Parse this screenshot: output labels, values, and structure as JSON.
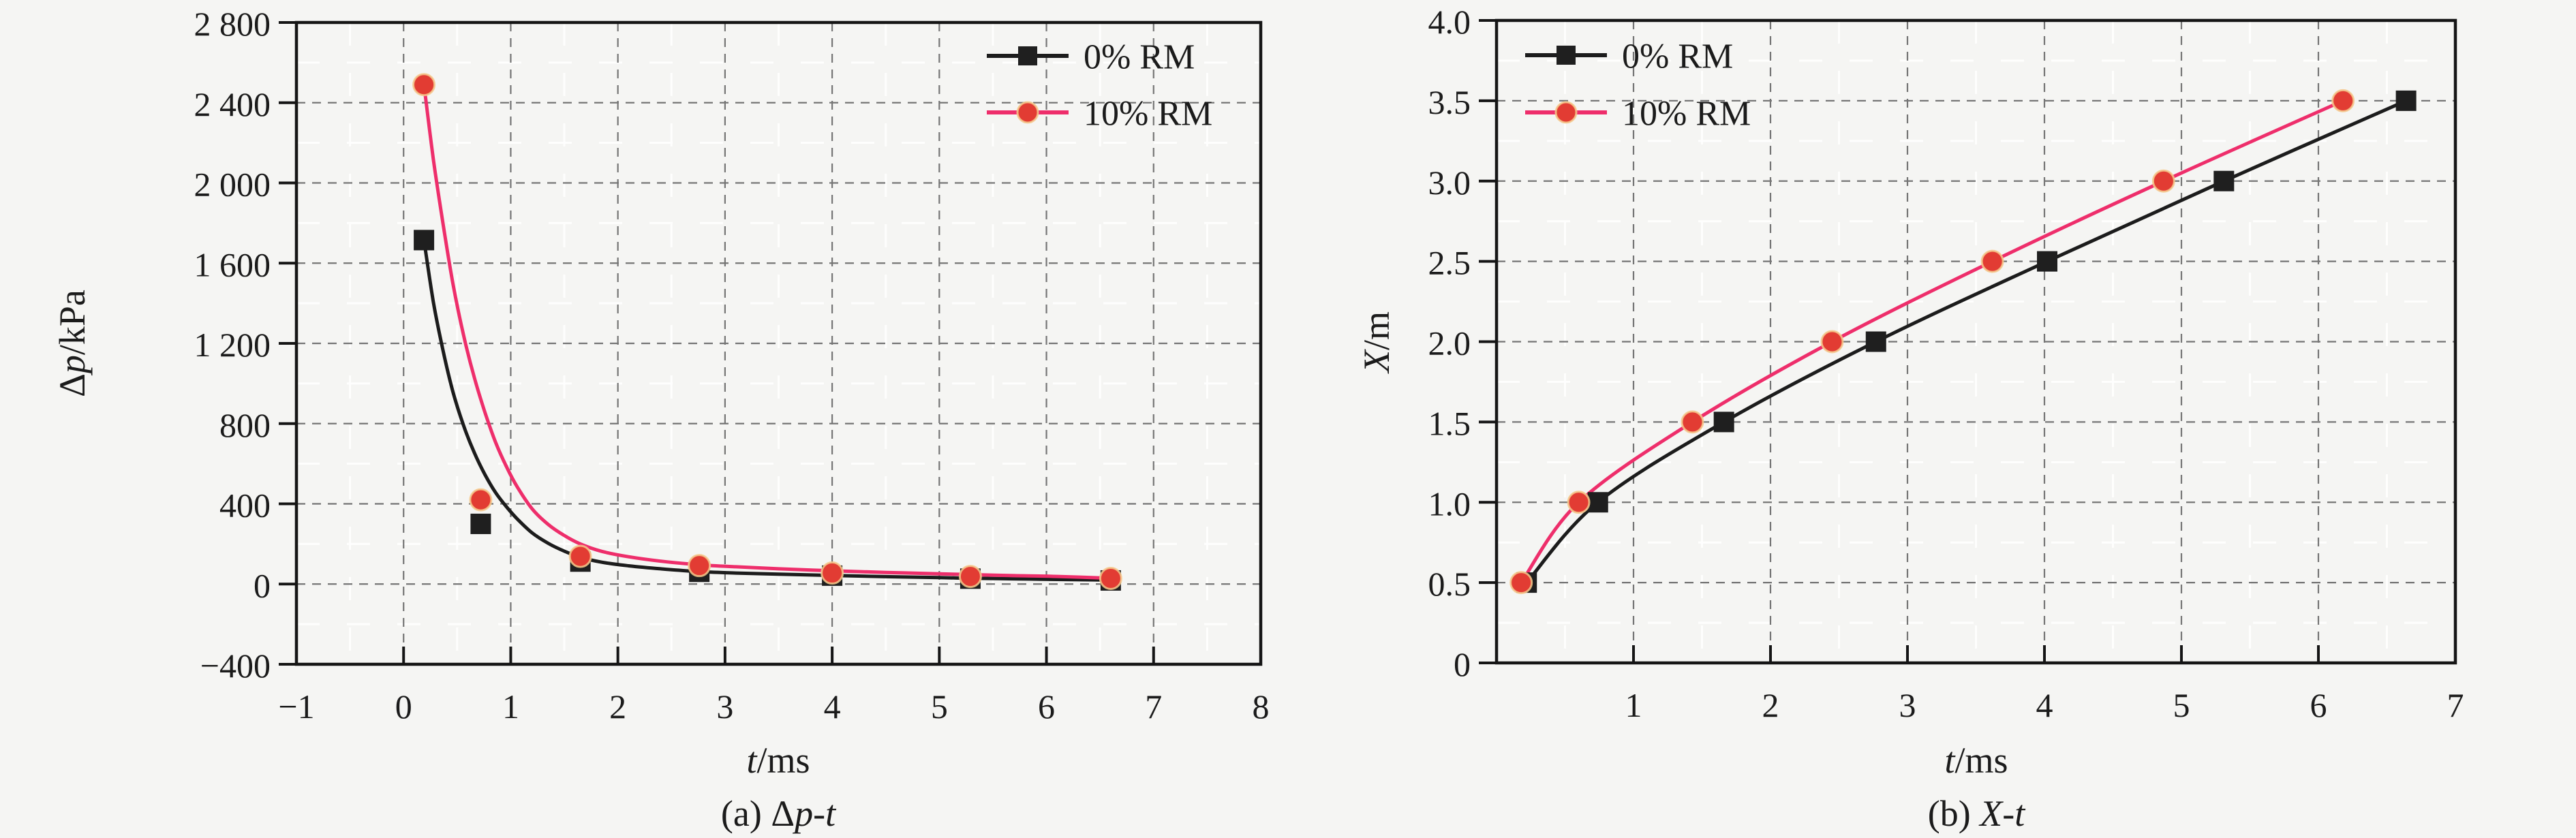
{
  "figure": {
    "background": "#f5f5f3",
    "text_color": "#1b1b1b",
    "grid_major_color": "#757575",
    "grid_minor_color": "#ffffff",
    "frame_color": "#151515"
  },
  "chart_data": [
    {
      "type": "line",
      "id": "delta-p-vs-t",
      "caption": {
        "prefix": "(a) ",
        "upright": "Δ",
        "italic": "p-t"
      },
      "x_title": {
        "var": "t",
        "unit": "/ms"
      },
      "y_title": {
        "prefix": "Δ",
        "var": "p",
        "unit": "/kPa"
      },
      "xlabel": "t/ms",
      "ylabel": "Δp/kPa",
      "xlim": [
        -1,
        8
      ],
      "ylim": [
        -400,
        2800
      ],
      "legend_position": "top-right-inside",
      "x_axis": {
        "ticks": [
          {
            "v": -1,
            "label": "−1"
          },
          {
            "v": 0,
            "label": "0"
          },
          {
            "v": 1,
            "label": "1"
          },
          {
            "v": 2,
            "label": "2"
          },
          {
            "v": 3,
            "label": "3"
          },
          {
            "v": 4,
            "label": "4"
          },
          {
            "v": 5,
            "label": "5"
          },
          {
            "v": 6,
            "label": "6"
          },
          {
            "v": 7,
            "label": "7"
          },
          {
            "v": 8,
            "label": "8"
          }
        ],
        "grid_major": [
          0,
          1,
          2,
          3,
          4,
          5,
          6,
          7
        ],
        "grid_minor": [
          -0.5,
          0.5,
          1.5,
          2.5,
          3.5,
          4.5,
          5.5,
          6.5,
          7.5
        ]
      },
      "y_axis": {
        "ticks": [
          {
            "v": 2800,
            "label": "2 800"
          },
          {
            "v": 2400,
            "label": "2 400"
          },
          {
            "v": 2000,
            "label": "2 000"
          },
          {
            "v": 1600,
            "label": "1 600"
          },
          {
            "v": 1200,
            "label": "1 200"
          },
          {
            "v": 800,
            "label": "800"
          },
          {
            "v": 400,
            "label": "400"
          },
          {
            "v": 0,
            "label": "0"
          },
          {
            "v": -400,
            "label": "−400"
          }
        ],
        "grid_major": [
          2400,
          2000,
          1600,
          1200,
          800,
          400,
          0
        ],
        "grid_minor": [
          2600,
          2200,
          1800,
          1400,
          1000,
          600,
          200,
          -200
        ]
      },
      "series": [
        {
          "name": "0% RM",
          "marker": "square",
          "line_color": "#1c1c1c",
          "marker_color": "#1f1f1f",
          "points": [
            [
              0.19,
              1715
            ],
            [
              0.72,
              300
            ],
            [
              1.65,
              112
            ],
            [
              2.76,
              61
            ],
            [
              4.0,
              42
            ],
            [
              5.29,
              27
            ],
            [
              6.6,
              18
            ]
          ],
          "curve": [
            [
              0.19,
              1715
            ],
            [
              0.28,
              1400
            ],
            [
              0.37,
              1160
            ],
            [
              0.46,
              960
            ],
            [
              0.56,
              790
            ],
            [
              0.66,
              655
            ],
            [
              0.76,
              545
            ],
            [
              0.86,
              455
            ],
            [
              0.96,
              385
            ],
            [
              1.06,
              325
            ],
            [
              1.2,
              255
            ],
            [
              1.35,
              203
            ],
            [
              1.5,
              164
            ],
            [
              1.65,
              134
            ],
            [
              1.85,
              109
            ],
            [
              2.1,
              91
            ],
            [
              2.4,
              76
            ],
            [
              2.76,
              62
            ],
            [
              3.1,
              55
            ],
            [
              3.5,
              49
            ],
            [
              4.0,
              43
            ],
            [
              4.5,
              37
            ],
            [
              5.0,
              32
            ],
            [
              5.29,
              29
            ],
            [
              5.7,
              26
            ],
            [
              6.1,
              23
            ],
            [
              6.6,
              20
            ]
          ]
        },
        {
          "name": "10% RM",
          "marker": "circle",
          "line_color": "#ee2e6b",
          "marker_color": "#e23c33",
          "marker_halo": "#f4c98c",
          "points": [
            [
              0.19,
              2490
            ],
            [
              0.72,
              420
            ],
            [
              1.65,
              138
            ],
            [
              2.76,
              92
            ],
            [
              4.0,
              55
            ],
            [
              5.29,
              38
            ],
            [
              6.6,
              28
            ]
          ],
          "curve": [
            [
              0.19,
              2490
            ],
            [
              0.28,
              2110
            ],
            [
              0.37,
              1790
            ],
            [
              0.46,
              1500
            ],
            [
              0.56,
              1240
            ],
            [
              0.66,
              1030
            ],
            [
              0.76,
              855
            ],
            [
              0.86,
              705
            ],
            [
              0.96,
              585
            ],
            [
              1.06,
              485
            ],
            [
              1.2,
              375
            ],
            [
              1.35,
              297
            ],
            [
              1.5,
              242
            ],
            [
              1.65,
              200
            ],
            [
              1.85,
              163
            ],
            [
              2.1,
              136
            ],
            [
              2.4,
              114
            ],
            [
              2.76,
              96
            ],
            [
              3.1,
              86
            ],
            [
              3.5,
              76
            ],
            [
              4.0,
              66
            ],
            [
              4.5,
              58
            ],
            [
              5.0,
              51
            ],
            [
              5.29,
              47
            ],
            [
              5.7,
              42
            ],
            [
              6.1,
              38
            ],
            [
              6.6,
              29
            ]
          ]
        }
      ],
      "legend": {
        "items": [
          "0% RM",
          "10% RM"
        ]
      }
    },
    {
      "type": "line",
      "id": "x-vs-t",
      "caption": {
        "prefix": "(b) ",
        "upright": "",
        "italic": "X-t"
      },
      "x_title": {
        "var": "t",
        "unit": "/ms"
      },
      "y_title": {
        "prefix": "",
        "var": "X",
        "unit": "/m"
      },
      "xlabel": "t/ms",
      "ylabel": "X/m",
      "xlim": [
        0,
        7
      ],
      "ylim": [
        0,
        4
      ],
      "legend_position": "top-left-inside",
      "x_axis": {
        "ticks": [
          {
            "v": 1,
            "label": "1"
          },
          {
            "v": 2,
            "label": "2"
          },
          {
            "v": 3,
            "label": "3"
          },
          {
            "v": 4,
            "label": "4"
          },
          {
            "v": 5,
            "label": "5"
          },
          {
            "v": 6,
            "label": "6"
          },
          {
            "v": 7,
            "label": "7"
          }
        ],
        "grid_major": [
          1,
          2,
          3,
          4,
          5,
          6
        ],
        "grid_minor": [
          0.5,
          1.5,
          2.5,
          3.5,
          4.5,
          5.5,
          6.5
        ]
      },
      "y_axis": {
        "ticks": [
          {
            "v": 4.0,
            "label": "4.0"
          },
          {
            "v": 3.5,
            "label": "3.5"
          },
          {
            "v": 3.0,
            "label": "3.0"
          },
          {
            "v": 2.5,
            "label": "2.5"
          },
          {
            "v": 2.0,
            "label": "2.0"
          },
          {
            "v": 1.5,
            "label": "1.5"
          },
          {
            "v": 1.0,
            "label": "1.0"
          },
          {
            "v": 0.5,
            "label": "0.5"
          },
          {
            "v": 0,
            "label": "0"
          }
        ],
        "grid_major": [
          3.5,
          3.0,
          2.5,
          2.0,
          1.5,
          1.0,
          0.5
        ],
        "grid_minor": [
          3.75,
          3.25,
          2.75,
          2.25,
          1.75,
          1.25,
          0.75,
          0.25
        ]
      },
      "series": [
        {
          "name": "0% RM",
          "marker": "square",
          "line_color": "#1c1c1c",
          "marker_color": "#1f1f1f",
          "points": [
            [
              0.22,
              0.5
            ],
            [
              0.74,
              1.0
            ],
            [
              1.66,
              1.5
            ],
            [
              2.77,
              2.0
            ],
            [
              4.02,
              2.5
            ],
            [
              5.31,
              3.0
            ],
            [
              6.64,
              3.5
            ]
          ],
          "curve": null
        },
        {
          "name": "10% RM",
          "marker": "circle",
          "line_color": "#ee2e6b",
          "marker_color": "#e23c33",
          "marker_halo": "#f4c98c",
          "points": [
            [
              0.18,
              0.5
            ],
            [
              0.6,
              1.0
            ],
            [
              1.43,
              1.5
            ],
            [
              2.45,
              2.0
            ],
            [
              3.62,
              2.5
            ],
            [
              4.87,
              3.0
            ],
            [
              6.18,
              3.5
            ]
          ],
          "curve": null
        }
      ],
      "legend": {
        "items": [
          "0% RM",
          "10% RM"
        ]
      }
    }
  ]
}
